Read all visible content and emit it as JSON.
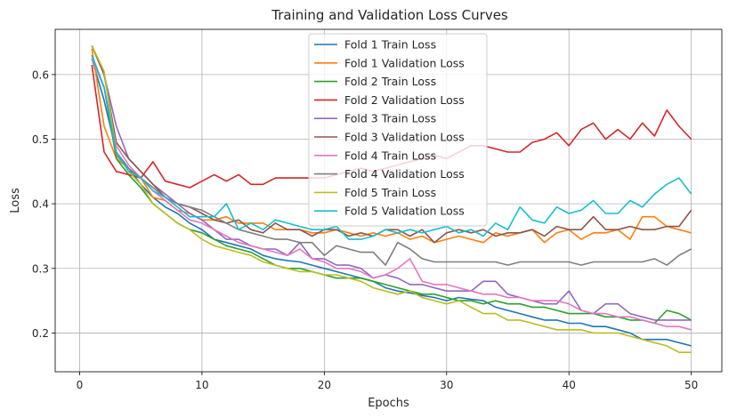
{
  "chart_data": {
    "type": "line",
    "title": "Training and Validation Loss Curves",
    "xlabel": "Epochs",
    "ylabel": "Loss",
    "xlim": [
      -2.0,
      52.5
    ],
    "ylim": [
      0.14,
      0.67
    ],
    "xticks": [
      0,
      10,
      20,
      30,
      40,
      50
    ],
    "yticks": [
      0.2,
      0.3,
      0.4,
      0.5,
      0.6
    ],
    "grid": true,
    "legend_position": "top-center",
    "x": [
      1,
      2,
      3,
      4,
      5,
      6,
      7,
      8,
      9,
      10,
      11,
      12,
      13,
      14,
      15,
      16,
      17,
      18,
      19,
      20,
      21,
      22,
      23,
      24,
      25,
      26,
      27,
      28,
      29,
      30,
      31,
      32,
      33,
      34,
      35,
      36,
      37,
      38,
      39,
      40,
      41,
      42,
      43,
      44,
      45,
      46,
      47,
      48,
      49,
      50
    ],
    "series": [
      {
        "name": "Fold 1 Train Loss",
        "color": "#1f77b4",
        "values": [
          0.625,
          0.56,
          0.48,
          0.455,
          0.43,
          0.41,
          0.395,
          0.385,
          0.37,
          0.36,
          0.345,
          0.34,
          0.335,
          0.33,
          0.32,
          0.315,
          0.312,
          0.31,
          0.305,
          0.3,
          0.295,
          0.29,
          0.285,
          0.28,
          0.27,
          0.265,
          0.262,
          0.258,
          0.255,
          0.25,
          0.255,
          0.252,
          0.25,
          0.24,
          0.235,
          0.23,
          0.225,
          0.22,
          0.22,
          0.215,
          0.215,
          0.21,
          0.21,
          0.205,
          0.2,
          0.19,
          0.19,
          0.19,
          0.185,
          0.18
        ]
      },
      {
        "name": "Fold 1 Validation Loss",
        "color": "#ff7f0e",
        "values": [
          0.64,
          0.52,
          0.47,
          0.455,
          0.44,
          0.41,
          0.405,
          0.39,
          0.385,
          0.375,
          0.375,
          0.38,
          0.37,
          0.37,
          0.37,
          0.36,
          0.36,
          0.36,
          0.355,
          0.355,
          0.36,
          0.355,
          0.35,
          0.355,
          0.35,
          0.355,
          0.345,
          0.35,
          0.34,
          0.345,
          0.35,
          0.345,
          0.34,
          0.355,
          0.35,
          0.355,
          0.36,
          0.34,
          0.355,
          0.36,
          0.345,
          0.355,
          0.355,
          0.36,
          0.345,
          0.38,
          0.38,
          0.365,
          0.36,
          0.355
        ]
      },
      {
        "name": "Fold 2 Train Loss",
        "color": "#2ca02c",
        "values": [
          0.63,
          0.58,
          0.47,
          0.445,
          0.425,
          0.4,
          0.385,
          0.37,
          0.36,
          0.355,
          0.345,
          0.335,
          0.33,
          0.325,
          0.315,
          0.305,
          0.3,
          0.3,
          0.295,
          0.29,
          0.285,
          0.285,
          0.285,
          0.28,
          0.275,
          0.27,
          0.265,
          0.26,
          0.26,
          0.255,
          0.25,
          0.25,
          0.245,
          0.25,
          0.245,
          0.245,
          0.24,
          0.24,
          0.235,
          0.23,
          0.23,
          0.23,
          0.225,
          0.225,
          0.22,
          0.22,
          0.215,
          0.235,
          0.23,
          0.22
        ]
      },
      {
        "name": "Fold 2 Validation Loss",
        "color": "#d62728",
        "values": [
          0.615,
          0.48,
          0.45,
          0.445,
          0.44,
          0.465,
          0.435,
          0.43,
          0.425,
          0.435,
          0.445,
          0.435,
          0.445,
          0.43,
          0.43,
          0.44,
          0.44,
          0.44,
          0.44,
          0.44,
          0.445,
          0.45,
          0.455,
          0.45,
          0.455,
          0.46,
          0.465,
          0.47,
          0.475,
          0.47,
          0.48,
          0.49,
          0.49,
          0.485,
          0.48,
          0.48,
          0.495,
          0.5,
          0.51,
          0.49,
          0.515,
          0.525,
          0.5,
          0.515,
          0.5,
          0.525,
          0.505,
          0.545,
          0.52,
          0.5
        ]
      },
      {
        "name": "Fold 3 Train Loss",
        "color": "#9467bd",
        "values": [
          0.645,
          0.6,
          0.52,
          0.47,
          0.45,
          0.43,
          0.415,
          0.4,
          0.385,
          0.375,
          0.36,
          0.345,
          0.345,
          0.335,
          0.33,
          0.33,
          0.32,
          0.34,
          0.315,
          0.315,
          0.305,
          0.305,
          0.3,
          0.285,
          0.29,
          0.285,
          0.275,
          0.275,
          0.27,
          0.265,
          0.265,
          0.265,
          0.28,
          0.28,
          0.26,
          0.255,
          0.25,
          0.245,
          0.245,
          0.265,
          0.235,
          0.23,
          0.245,
          0.245,
          0.23,
          0.225,
          0.22,
          0.22,
          0.22,
          0.22
        ]
      },
      {
        "name": "Fold 3 Validation Loss",
        "color": "#8c564b",
        "values": [
          0.645,
          0.6,
          0.495,
          0.47,
          0.45,
          0.43,
          0.41,
          0.4,
          0.395,
          0.385,
          0.375,
          0.37,
          0.375,
          0.36,
          0.355,
          0.37,
          0.36,
          0.36,
          0.35,
          0.36,
          0.36,
          0.35,
          0.355,
          0.35,
          0.36,
          0.36,
          0.35,
          0.36,
          0.34,
          0.355,
          0.36,
          0.355,
          0.36,
          0.35,
          0.355,
          0.355,
          0.36,
          0.35,
          0.365,
          0.36,
          0.36,
          0.38,
          0.36,
          0.36,
          0.365,
          0.36,
          0.36,
          0.365,
          0.365,
          0.39
        ]
      },
      {
        "name": "Fold 4 Train Loss",
        "color": "#e377c2",
        "values": [
          0.625,
          0.58,
          0.49,
          0.46,
          0.44,
          0.42,
          0.405,
          0.39,
          0.375,
          0.37,
          0.36,
          0.35,
          0.34,
          0.335,
          0.33,
          0.325,
          0.32,
          0.33,
          0.315,
          0.31,
          0.3,
          0.3,
          0.295,
          0.285,
          0.29,
          0.3,
          0.315,
          0.28,
          0.275,
          0.275,
          0.27,
          0.265,
          0.26,
          0.26,
          0.255,
          0.255,
          0.25,
          0.25,
          0.25,
          0.245,
          0.235,
          0.23,
          0.23,
          0.225,
          0.225,
          0.22,
          0.215,
          0.21,
          0.21,
          0.205
        ]
      },
      {
        "name": "Fold 4 Validation Loss",
        "color": "#7f7f7f",
        "values": [
          0.63,
          0.58,
          0.475,
          0.455,
          0.44,
          0.425,
          0.41,
          0.4,
          0.395,
          0.39,
          0.38,
          0.37,
          0.36,
          0.355,
          0.35,
          0.345,
          0.345,
          0.34,
          0.34,
          0.32,
          0.335,
          0.33,
          0.325,
          0.325,
          0.305,
          0.34,
          0.33,
          0.315,
          0.31,
          0.31,
          0.31,
          0.31,
          0.31,
          0.31,
          0.305,
          0.31,
          0.31,
          0.31,
          0.31,
          0.31,
          0.305,
          0.31,
          0.31,
          0.31,
          0.31,
          0.31,
          0.315,
          0.305,
          0.32,
          0.33
        ]
      },
      {
        "name": "Fold 5 Train Loss",
        "color": "#bcbd22",
        "values": [
          0.645,
          0.605,
          0.48,
          0.45,
          0.43,
          0.4,
          0.385,
          0.37,
          0.36,
          0.345,
          0.335,
          0.33,
          0.325,
          0.32,
          0.31,
          0.305,
          0.3,
          0.295,
          0.295,
          0.29,
          0.29,
          0.285,
          0.28,
          0.27,
          0.265,
          0.26,
          0.265,
          0.255,
          0.25,
          0.245,
          0.25,
          0.24,
          0.23,
          0.23,
          0.22,
          0.22,
          0.215,
          0.21,
          0.205,
          0.205,
          0.205,
          0.2,
          0.2,
          0.2,
          0.195,
          0.19,
          0.185,
          0.18,
          0.17,
          0.17
        ]
      },
      {
        "name": "Fold 5 Validation Loss",
        "color": "#17becf",
        "values": [
          0.63,
          0.58,
          0.48,
          0.45,
          0.44,
          0.42,
          0.41,
          0.395,
          0.38,
          0.38,
          0.38,
          0.4,
          0.36,
          0.37,
          0.36,
          0.375,
          0.37,
          0.365,
          0.36,
          0.36,
          0.365,
          0.345,
          0.345,
          0.35,
          0.36,
          0.355,
          0.36,
          0.355,
          0.36,
          0.365,
          0.355,
          0.36,
          0.35,
          0.37,
          0.36,
          0.395,
          0.375,
          0.37,
          0.395,
          0.385,
          0.39,
          0.405,
          0.385,
          0.385,
          0.405,
          0.395,
          0.415,
          0.43,
          0.44,
          0.415
        ]
      }
    ]
  }
}
